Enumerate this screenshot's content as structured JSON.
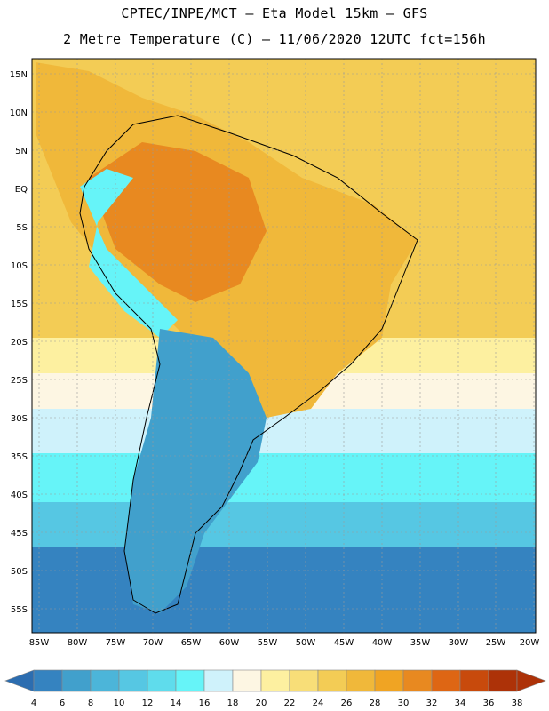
{
  "title": {
    "line1": "CPTEC/INPE/MCT –  Eta Model 15km – GFS",
    "line2": "2 Metre Temperature (C) – 11/06/2020 12UTC fct=156h"
  },
  "map": {
    "lat_ticks": [
      "15N",
      "10N",
      "5N",
      "EQ",
      "5S",
      "10S",
      "15S",
      "20S",
      "25S",
      "30S",
      "35S",
      "40S",
      "45S",
      "50S",
      "55S"
    ],
    "lon_ticks": [
      "85W",
      "80W",
      "75W",
      "70W",
      "65W",
      "60W",
      "55W",
      "50W",
      "45W",
      "40W",
      "35W",
      "30W",
      "25W",
      "20W"
    ]
  },
  "colorbar": {
    "labels": [
      "4",
      "6",
      "8",
      "10",
      "12",
      "14",
      "16",
      "18",
      "20",
      "22",
      "24",
      "26",
      "28",
      "30",
      "32",
      "34",
      "36",
      "38"
    ],
    "colors": [
      "#2c6db0",
      "#3583c0",
      "#41a0cc",
      "#4cb5d9",
      "#56c7e3",
      "#5fdcec",
      "#66f4f8",
      "#cff2fb",
      "#fdf6e3",
      "#fdf0a0",
      "#f8de78",
      "#f3cc55",
      "#f0b83a",
      "#f0a423",
      "#e88920",
      "#de6614",
      "#c84a0c",
      "#ad3208",
      "#3b7ac0"
    ]
  }
}
